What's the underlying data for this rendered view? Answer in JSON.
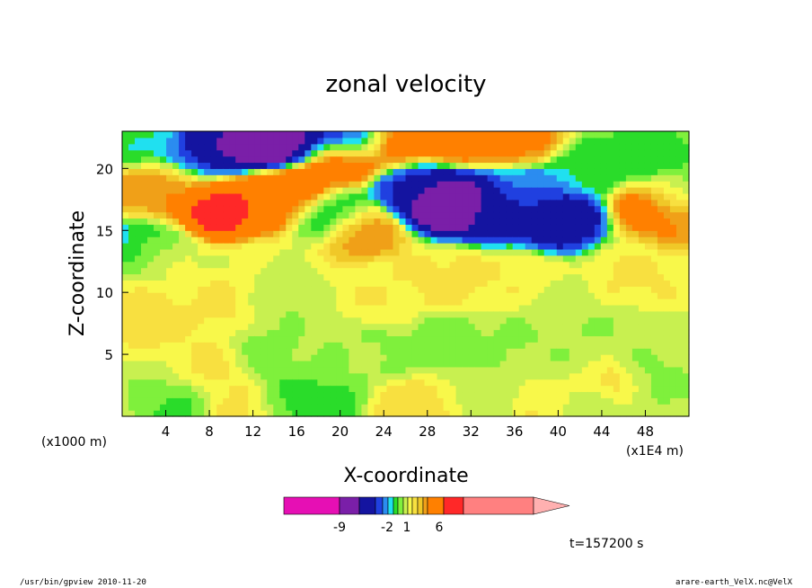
{
  "chart_data": {
    "type": "heatmap",
    "title": "zonal velocity",
    "xlabel": "X-coordinate",
    "ylabel": "Z-coordinate",
    "x_unit_left": "(x1000 m)",
    "x_unit_right": "(x1E4 m)",
    "xlim": [
      0,
      52
    ],
    "ylim": [
      0,
      23
    ],
    "x_ticks": [
      4,
      8,
      12,
      16,
      20,
      24,
      28,
      32,
      36,
      40,
      44,
      48
    ],
    "y_ticks": [
      5,
      10,
      15,
      20
    ],
    "colorbar": {
      "levels": [
        -15,
        -9,
        -6,
        -4,
        -3,
        -2,
        -1.5,
        -1,
        -0.5,
        0,
        0.5,
        1,
        1.5,
        2,
        4,
        6,
        10,
        20
      ],
      "labels": [
        "-9",
        "-2",
        "1",
        "6"
      ],
      "colors": [
        "#e60fb4",
        "#7a1fa8",
        "#1414a0",
        "#2040e0",
        "#2b8cf0",
        "#20e0f0",
        "#2adc2a",
        "#7ff03c",
        "#c8f050",
        "#f8f84a",
        "#f8e040",
        "#f0c828",
        "#f0a018",
        "#ff8000",
        "#ff2828",
        "#ff8080",
        "#ffb0b0"
      ]
    },
    "time_label": "t=157200 s",
    "blobs": [
      {
        "x": 14,
        "y": 22,
        "v": -9
      },
      {
        "x": 9,
        "y": 21.5,
        "v": -7
      },
      {
        "x": 21,
        "y": 22.5,
        "v": -4
      },
      {
        "x": 18,
        "y": 23,
        "v": -6
      },
      {
        "x": 7,
        "y": 21,
        "v": -4
      },
      {
        "x": 2,
        "y": 22,
        "v": -1.5
      },
      {
        "x": 29,
        "y": 17.5,
        "v": -9
      },
      {
        "x": 31.5,
        "y": 17,
        "v": -7
      },
      {
        "x": 35,
        "y": 16.5,
        "v": -5
      },
      {
        "x": 40,
        "y": 16,
        "v": -6
      },
      {
        "x": 27,
        "y": 18.5,
        "v": -4
      },
      {
        "x": 37,
        "y": 18,
        "v": -3
      },
      {
        "x": 48,
        "y": 21,
        "v": -1.5
      },
      {
        "x": 43,
        "y": 20,
        "v": -1.5
      },
      {
        "x": 51,
        "y": 18,
        "v": -1
      },
      {
        "x": 9,
        "y": 17,
        "v": 5
      },
      {
        "x": 11,
        "y": 17.5,
        "v": 4
      },
      {
        "x": 14,
        "y": 17.5,
        "v": 3
      },
      {
        "x": 16,
        "y": 18.5,
        "v": 4
      },
      {
        "x": 2,
        "y": 18,
        "v": 2
      },
      {
        "x": 49,
        "y": 17,
        "v": 3
      },
      {
        "x": 52,
        "y": 16,
        "v": 2
      },
      {
        "x": 20,
        "y": 21,
        "v": 4
      },
      {
        "x": 30,
        "y": 22.5,
        "v": 3
      },
      {
        "x": 36,
        "y": 22.5,
        "v": 2.5
      },
      {
        "x": 25,
        "y": 22,
        "v": 3
      },
      {
        "x": 5,
        "y": 19,
        "v": 2
      },
      {
        "x": 22,
        "y": 15,
        "v": 2
      },
      {
        "x": 19,
        "y": 16.5,
        "v": -2
      },
      {
        "x": 1,
        "y": 14,
        "v": -2
      },
      {
        "x": 3,
        "y": 13,
        "v": 0
      },
      {
        "x": 15,
        "y": 9,
        "v": -0.5
      },
      {
        "x": 13,
        "y": 5,
        "v": -0.7
      },
      {
        "x": 20,
        "y": 5,
        "v": -0.5
      },
      {
        "x": 30,
        "y": 6,
        "v": -0.8
      },
      {
        "x": 25,
        "y": 5,
        "v": -0.6
      },
      {
        "x": 35,
        "y": 6,
        "v": -0.6
      },
      {
        "x": 40,
        "y": 9,
        "v": -0.4
      },
      {
        "x": 48,
        "y": 3,
        "v": -0.7
      },
      {
        "x": 45,
        "y": 7,
        "v": -0.5
      },
      {
        "x": 51,
        "y": 2,
        "v": -0.5
      },
      {
        "x": 3,
        "y": 2,
        "v": -0.4
      },
      {
        "x": 33,
        "y": 1,
        "v": -0.2
      },
      {
        "x": 2,
        "y": 8,
        "v": 0.8
      },
      {
        "x": 8,
        "y": 4,
        "v": 0.7
      },
      {
        "x": 10,
        "y": 1,
        "v": 0.7
      },
      {
        "x": 24,
        "y": 10,
        "v": 0.5
      },
      {
        "x": 30,
        "y": 11,
        "v": 0.7
      },
      {
        "x": 36,
        "y": 11,
        "v": 0.5
      },
      {
        "x": 47,
        "y": 11,
        "v": 0.6
      },
      {
        "x": 27,
        "y": 1,
        "v": 0.8
      },
      {
        "x": 40,
        "y": 1,
        "v": 0.6
      },
      {
        "x": 9,
        "y": 9,
        "v": 0.6
      },
      {
        "x": 5,
        "y": 1,
        "v": -1.5
      },
      {
        "x": 18,
        "y": 1,
        "v": -1.5
      },
      {
        "x": 16,
        "y": 2,
        "v": -1
      },
      {
        "x": 43,
        "y": 1.5,
        "v": -1.5
      },
      {
        "x": 44,
        "y": 2.5,
        "v": 2
      },
      {
        "x": 42,
        "y": 4,
        "v": -0.5
      }
    ]
  },
  "footer": {
    "left": "/usr/bin/gpview  2010-11-20",
    "right": "arare-earth_VelX.nc@VelX"
  }
}
